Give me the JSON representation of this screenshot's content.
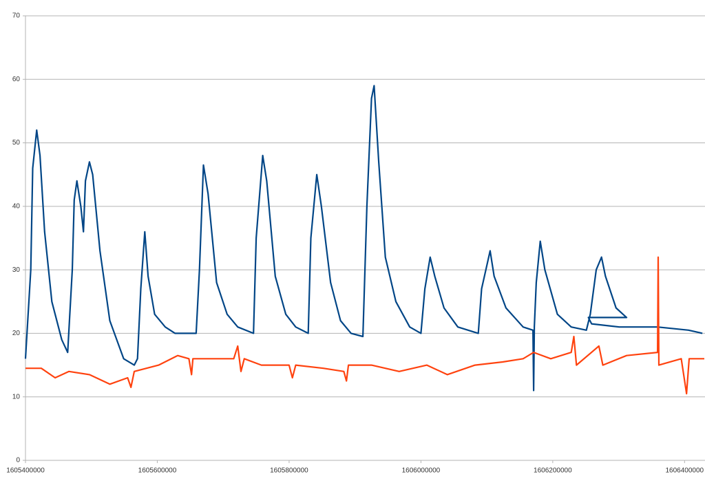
{
  "chart_data": {
    "type": "line",
    "xlim": [
      1605400000,
      1606431000
    ],
    "xticks": [
      1605400000,
      1605600000,
      1605800000,
      1606000000,
      1606200000,
      1606400000
    ],
    "ylim": [
      0,
      70
    ],
    "yticks": [
      0,
      10,
      20,
      30,
      40,
      50,
      60,
      70
    ],
    "grid": true,
    "series": [
      {
        "color": "#004586",
        "x": [
          1605400000,
          1605408000,
          1605411000,
          1605417000,
          1605422000,
          1605429000,
          1605440000,
          1605455000,
          1605464000,
          1605471000,
          1605474000,
          1605478000,
          1605484000,
          1605488000,
          1605491000,
          1605497000,
          1605502000,
          1605513000,
          1605528000,
          1605549000,
          1605565000,
          1605570000,
          1605575000,
          1605581000,
          1605586000,
          1605596000,
          1605612000,
          1605627000,
          1605659000,
          1605664000,
          1605670000,
          1605677000,
          1605690000,
          1605706000,
          1605722000,
          1605746000,
          1605750000,
          1605760000,
          1605766000,
          1605779000,
          1605795000,
          1605810000,
          1605829000,
          1605833000,
          1605842000,
          1605849000,
          1605863000,
          1605878000,
          1605894000,
          1605912000,
          1605918000,
          1605925000,
          1605929000,
          1605936000,
          1605946000,
          1605962000,
          1605983000,
          1606000000,
          1606006000,
          1606014000,
          1606021000,
          1606035000,
          1606056000,
          1606087000,
          1606092000,
          1606105000,
          1606111000,
          1606129000,
          1606155000,
          1606170000,
          1606171000,
          1606172000,
          1606175000,
          1606181000,
          1606188000,
          1606207000,
          1606228000,
          1606251000,
          1606257000,
          1606266000,
          1606274000,
          1606280000,
          1606296000,
          1606312000,
          1606254000,
          1606259000,
          1606301000,
          1606359000,
          1606406000,
          1606427000
        ],
        "values": [
          16,
          30,
          46,
          52,
          48,
          36,
          25,
          19,
          17,
          30,
          41,
          44,
          40,
          36,
          44,
          47,
          45,
          33,
          22,
          16,
          15,
          16,
          27,
          36,
          29,
          23,
          21,
          20,
          20,
          30,
          46.5,
          42,
          28,
          23,
          21,
          20,
          35,
          48,
          44,
          29,
          23,
          21,
          20,
          35,
          45,
          40,
          28,
          22,
          20,
          19.5,
          40,
          57,
          59,
          47,
          32,
          25,
          21,
          20,
          27,
          32,
          29,
          24,
          21,
          20,
          27,
          33,
          29,
          24,
          21,
          20.5,
          11,
          21,
          28,
          34.5,
          30,
          23,
          21,
          20.5,
          23,
          30,
          32,
          29,
          24,
          22.5,
          22.5,
          21.5,
          21,
          21,
          20.5,
          20
        ]
      },
      {
        "color": "#ff420e",
        "x": [
          1605400000,
          1605424000,
          1605445000,
          1605466000,
          1605497000,
          1605528000,
          1605555000,
          1605560000,
          1605565000,
          1605602000,
          1605631000,
          1605648000,
          1605652000,
          1605654000,
          1605685000,
          1605716000,
          1605722000,
          1605727000,
          1605732000,
          1605758000,
          1605800000,
          1605805000,
          1605810000,
          1605852000,
          1605883000,
          1605887000,
          1605890000,
          1605925000,
          1605967000,
          1606009000,
          1606040000,
          1606082000,
          1606124000,
          1606155000,
          1606171000,
          1606197000,
          1606228000,
          1606232000,
          1606236000,
          1606270000,
          1606276000,
          1606312000,
          1606359000,
          1606360000,
          1606361000,
          1606395000,
          1606403000,
          1606407000,
          1606430000
        ],
        "values": [
          14.5,
          14.5,
          13,
          14,
          13.5,
          12,
          13,
          11.5,
          14,
          15,
          16.5,
          16,
          13.5,
          16,
          16,
          16,
          18,
          14,
          16,
          15,
          15,
          13,
          15,
          14.5,
          14,
          12.5,
          15,
          15,
          14,
          15,
          13.5,
          15,
          15.5,
          16,
          17,
          16,
          17,
          19.5,
          15,
          18,
          15,
          16.5,
          17,
          32,
          15,
          16,
          10.5,
          16,
          16
        ]
      }
    ]
  }
}
